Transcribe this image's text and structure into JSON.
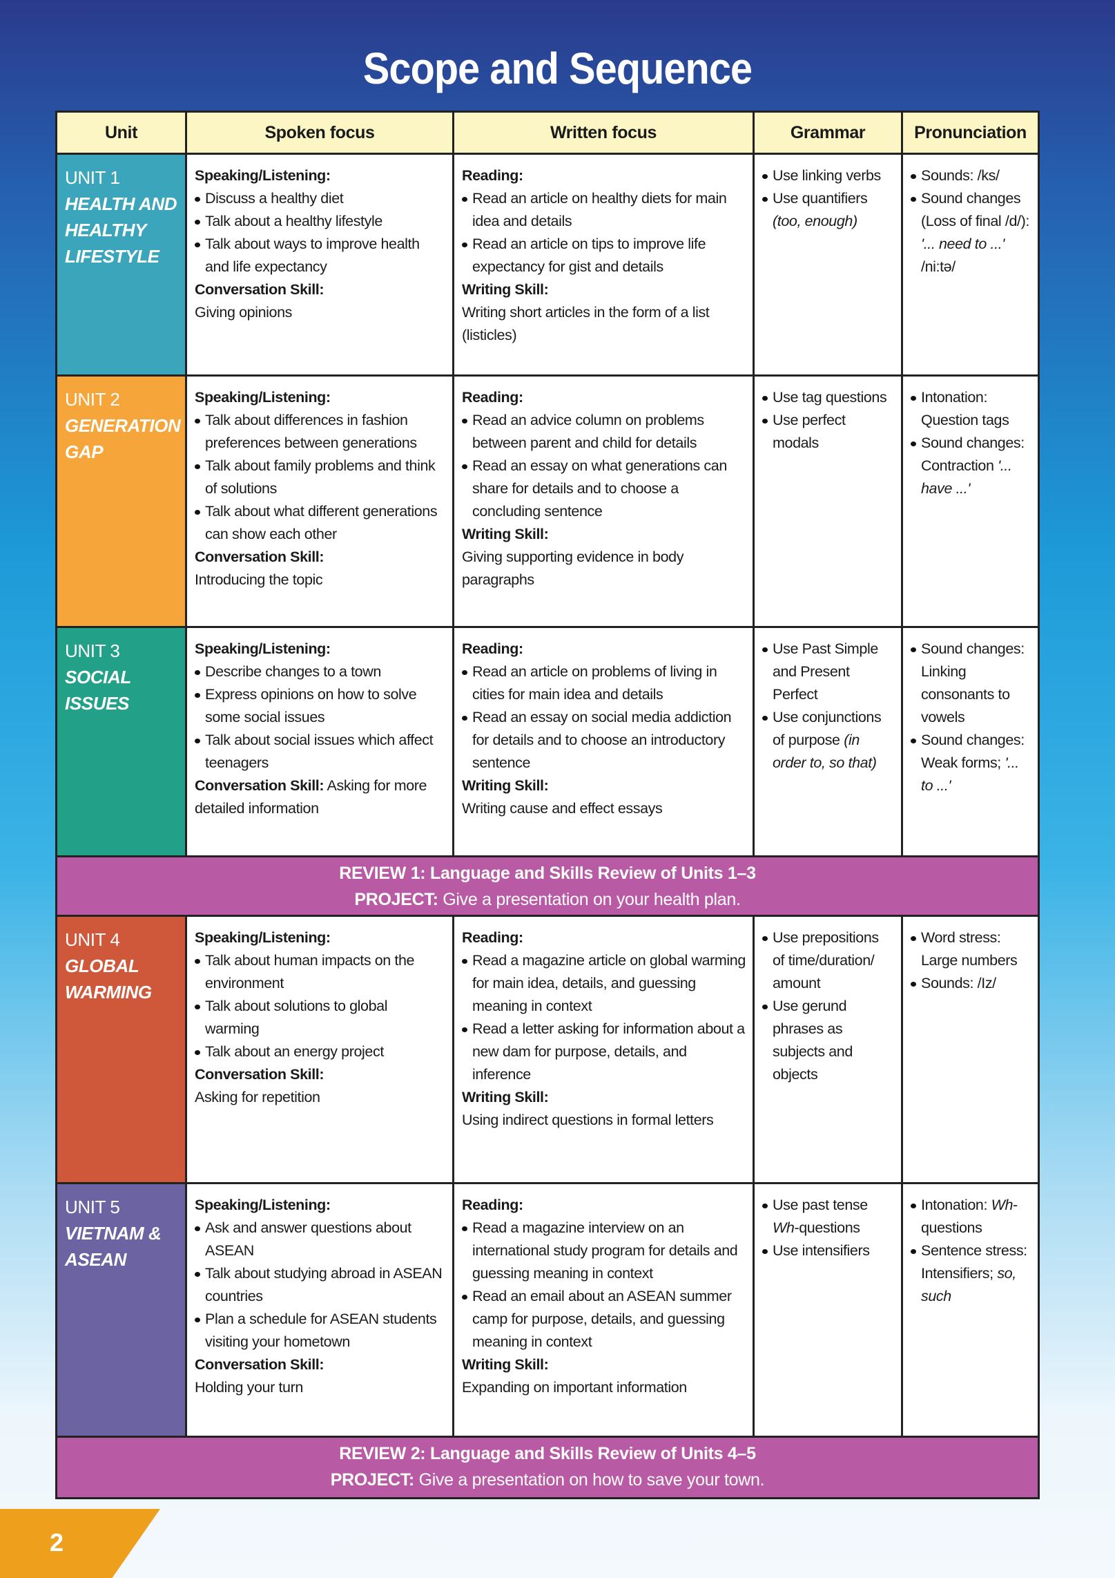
{
  "title": "Scope and Sequence",
  "page_number": "2",
  "colors": {
    "header": "#fbf6c4",
    "review": "#b95aa5",
    "page_badge": "#ee9f1c"
  },
  "headers": [
    "Unit",
    "Spoken focus",
    "Written focus",
    "Grammar",
    "Pronunciation"
  ],
  "rows": [
    {
      "type": "unit",
      "color": "#3aa5bb",
      "height": 321,
      "unit": "UNIT 1",
      "name": "HEALTH AND HEALTHY LIFESTYLE",
      "spoken": [
        {
          "h": "Speaking/Listening:"
        },
        {
          "li": [
            {
              "t": "Discuss a healthy diet"
            }
          ]
        },
        {
          "li": [
            {
              "t": "Talk about a healthy lifestyle"
            }
          ]
        },
        {
          "li": [
            {
              "t": "Talk about ways to improve health and life expectancy"
            }
          ]
        },
        {
          "h": "Conversation Skill:"
        },
        {
          "p": [
            {
              "t": "Giving opinions"
            }
          ]
        }
      ],
      "written": [
        {
          "h": "Reading:"
        },
        {
          "li": [
            {
              "t": "Read an article on healthy diets for main idea and details"
            }
          ]
        },
        {
          "li": [
            {
              "t": "Read an article on tips to improve life expectancy for gist and details"
            }
          ]
        },
        {
          "h": "Writing Skill:"
        },
        {
          "p": [
            {
              "t": "Writing short articles in the form of a list (listicles)"
            }
          ]
        }
      ],
      "grammar": [
        {
          "li": [
            {
              "t": "Use linking verbs"
            }
          ]
        },
        {
          "li": [
            {
              "t": "Use quantifiers "
            },
            {
              "t": "(too, enough)",
              "i": true
            }
          ]
        }
      ],
      "pron": [
        {
          "li": [
            {
              "t": "Sounds: /ks/"
            }
          ]
        },
        {
          "li": [
            {
              "t": "Sound changes (Loss of final /d/): "
            },
            {
              "t": "'... need to ...'",
              "i": true
            },
            {
              "t": " /ni:tə/"
            }
          ]
        }
      ]
    },
    {
      "type": "unit",
      "color": "#f5a53a",
      "height": 364,
      "unit": "UNIT 2",
      "name": "GENERATION GAP",
      "spoken": [
        {
          "h": "Speaking/Listening:"
        },
        {
          "li": [
            {
              "t": "Talk about differences in fashion preferences between generations"
            }
          ]
        },
        {
          "li": [
            {
              "t": "Talk about family problems and think of solutions"
            }
          ]
        },
        {
          "li": [
            {
              "t": "Talk about what different generations can show each other"
            }
          ]
        },
        {
          "h": "Conversation Skill:"
        },
        {
          "p": [
            {
              "t": "Introducing the topic"
            }
          ]
        }
      ],
      "written": [
        {
          "h": "Reading:"
        },
        {
          "li": [
            {
              "t": "Read an advice column on problems between parent and child for details"
            }
          ]
        },
        {
          "li": [
            {
              "t": "Read an essay on what generations can share for details and to choose a concluding sentence"
            }
          ]
        },
        {
          "h": "Writing Skill:"
        },
        {
          "p": [
            {
              "t": "Giving supporting evidence in body paragraphs"
            }
          ]
        }
      ],
      "grammar": [
        {
          "li": [
            {
              "t": "Use tag questions"
            }
          ]
        },
        {
          "li": [
            {
              "t": "Use perfect modals"
            }
          ]
        }
      ],
      "pron": [
        {
          "li": [
            {
              "t": "Intonation: Question tags"
            }
          ]
        },
        {
          "li": [
            {
              "t": "Sound changes: Contraction "
            },
            {
              "t": "'... have ...'",
              "i": true
            }
          ]
        }
      ]
    },
    {
      "type": "unit",
      "color": "#22a088",
      "height": 332,
      "unit": "UNIT 3",
      "name": "SOCIAL ISSUES",
      "spoken": [
        {
          "h": "Speaking/Listening:"
        },
        {
          "li": [
            {
              "t": "Describe changes to a town"
            }
          ]
        },
        {
          "li": [
            {
              "t": "Express opinions on how to solve some social issues"
            }
          ]
        },
        {
          "li": [
            {
              "t": "Talk about social issues which affect teenagers"
            }
          ]
        },
        {
          "p": [
            {
              "t": "Conversation Skill:",
              "b": true
            },
            {
              "t": " Asking for more detailed information"
            }
          ]
        }
      ],
      "written": [
        {
          "h": "Reading:"
        },
        {
          "li": [
            {
              "t": "Read an article on problems of living in cities for main idea and details"
            }
          ]
        },
        {
          "li": [
            {
              "t": "Read an essay on social media addiction for details and to choose an introductory sentence"
            }
          ]
        },
        {
          "h": "Writing Skill:"
        },
        {
          "p": [
            {
              "t": "Writing cause and effect essays"
            }
          ]
        }
      ],
      "grammar": [
        {
          "li": [
            {
              "t": "Use Past Simple and Present Perfect"
            }
          ]
        },
        {
          "li": [
            {
              "t": "Use conjunctions of purpose "
            },
            {
              "t": "(in order to, so that)",
              "i": true
            }
          ]
        }
      ],
      "pron": [
        {
          "li": [
            {
              "t": "Sound changes: Linking consonants to vowels"
            }
          ]
        },
        {
          "li": [
            {
              "t": "Sound changes: Weak forms; "
            },
            {
              "t": "'... to ...'",
              "i": true
            }
          ]
        }
      ]
    },
    {
      "type": "review",
      "height": 86,
      "line1": "REVIEW 1: Language and Skills Review of Units 1–3",
      "project_label": "PROJECT:",
      "project_text": " Give a presentation on your health plan."
    },
    {
      "type": "unit",
      "color": "#cf583a",
      "height": 387,
      "unit": "UNIT 4",
      "name": "GLOBAL WARMING",
      "spoken": [
        {
          "h": "Speaking/Listening:"
        },
        {
          "li": [
            {
              "t": "Talk about human impacts on the environment"
            }
          ]
        },
        {
          "li": [
            {
              "t": "Talk about solutions to global warming"
            }
          ]
        },
        {
          "li": [
            {
              "t": "Talk about an energy project"
            }
          ]
        },
        {
          "h": "Conversation Skill:"
        },
        {
          "p": [
            {
              "t": "Asking for repetition"
            }
          ]
        }
      ],
      "written": [
        {
          "h": "Reading:"
        },
        {
          "li": [
            {
              "t": "Read a magazine article on global warming for main idea, details, and guessing meaning in context"
            }
          ]
        },
        {
          "li": [
            {
              "t": "Read a letter asking for information about a new dam for purpose, details, and inference"
            }
          ]
        },
        {
          "h": "Writing Skill:"
        },
        {
          "p": [
            {
              "t": "Using indirect questions in formal letters"
            }
          ]
        }
      ],
      "grammar": [
        {
          "li": [
            {
              "t": "Use prepositions of time/duration/ amount"
            }
          ]
        },
        {
          "li": [
            {
              "t": "Use gerund phrases as subjects and objects"
            }
          ]
        }
      ],
      "pron": [
        {
          "li": [
            {
              "t": "Word stress: Large numbers"
            }
          ]
        },
        {
          "li": [
            {
              "t": "Sounds: /Iz/"
            }
          ]
        }
      ]
    },
    {
      "type": "unit",
      "color": "#6c63a3",
      "height": 367,
      "unit": "UNIT 5",
      "name": "VIETNAM & ASEAN",
      "spoken": [
        {
          "h": "Speaking/Listening:"
        },
        {
          "li": [
            {
              "t": "Ask and answer questions about ASEAN"
            }
          ]
        },
        {
          "li": [
            {
              "t": "Talk about studying abroad in ASEAN countries"
            }
          ]
        },
        {
          "li": [
            {
              "t": "Plan a schedule for ASEAN students visiting your hometown"
            }
          ]
        },
        {
          "h": "Conversation Skill:"
        },
        {
          "p": [
            {
              "t": "Holding your turn"
            }
          ]
        }
      ],
      "written": [
        {
          "h": "Reading:"
        },
        {
          "li": [
            {
              "t": "Read a magazine interview on an international study program for details and guessing meaning in context"
            }
          ]
        },
        {
          "li": [
            {
              "t": "Read an email about an ASEAN summer camp for purpose, details, and guessing meaning in context"
            }
          ]
        },
        {
          "h": "Writing Skill:"
        },
        {
          "p": [
            {
              "t": "Expanding on important information"
            }
          ]
        }
      ],
      "grammar": [
        {
          "li": [
            {
              "t": "Use past tense "
            },
            {
              "t": "Wh",
              "i": true
            },
            {
              "t": "-questions"
            }
          ]
        },
        {
          "li": [
            {
              "t": "Use intensifiers"
            }
          ]
        }
      ],
      "pron": [
        {
          "li": [
            {
              "t": "Intonation: "
            },
            {
              "t": "Wh",
              "i": true
            },
            {
              "t": "-questions"
            }
          ]
        },
        {
          "li": [
            {
              "t": "Sentence stress: Intensifiers; "
            },
            {
              "t": "so, such",
              "i": true
            }
          ]
        }
      ]
    },
    {
      "type": "review",
      "height": 86,
      "line1": "REVIEW 2: Language and Skills Review of Units 4–5",
      "project_label": "PROJECT:",
      "project_text": " Give a presentation on how to save your town."
    }
  ]
}
